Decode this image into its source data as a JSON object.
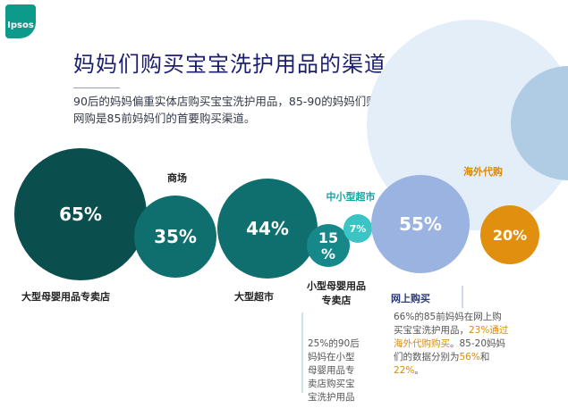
{
  "logo": {
    "text": "Ipsos"
  },
  "header": {
    "title": "妈妈们购买宝宝洗护用品的渠道",
    "subtitle_lines": [
      "90后的妈妈偏重实体店购买宝宝洗护用品，85-90的妈妈们则是线上线下并重，",
      "网购是85前妈妈们的首要购买渠道。"
    ]
  },
  "colors": {
    "dark_teal": "#0b4e4e",
    "mid_teal": "#0f6e6e",
    "teal": "#17888a",
    "light_teal": "#3cc4c4",
    "light_blue": "#9ab3e0",
    "orange": "#e0900e",
    "deco_blue": "#e4eef8",
    "deco_blue_dark": "#b0cce4",
    "label_orange": "#d98b08",
    "label_teal": "#17a2a2",
    "note_text": "#555555"
  },
  "chart_data": {
    "type": "bubble",
    "title": "妈妈们购买宝宝洗护用品的渠道",
    "bubbles": [
      {
        "category": "大型母婴用品专卖店",
        "value": 65,
        "label": "65%",
        "color_key": "dark_teal"
      },
      {
        "category": "商场",
        "value": 35,
        "label": "35%",
        "color_key": "mid_teal"
      },
      {
        "category": "大型超市",
        "value": 44,
        "label": "44%",
        "color_key": "mid_teal"
      },
      {
        "category": "小型母婴用品专卖店",
        "value": 15,
        "label": "15%",
        "color_key": "teal"
      },
      {
        "category": "中小型超市",
        "value": 7,
        "label": "7%",
        "color_key": "light_teal"
      },
      {
        "category": "网上购买",
        "value": 55,
        "label": "55%",
        "color_key": "light_blue"
      },
      {
        "category": "海外代购",
        "value": 20,
        "label": "20%",
        "color_key": "orange"
      }
    ],
    "annotations": {
      "small_store_note": [
        "25%的90后",
        "妈妈在小型",
        "母婴用品专",
        "卖店购买宝",
        "宝洗护用品"
      ],
      "online_note": {
        "lines": [
          [
            {
              "text": "66%的85前妈妈在网上购",
              "highlight": false
            }
          ],
          [
            {
              "text": "买宝宝洗护用品，",
              "highlight": false
            },
            {
              "text": "23%通过",
              "highlight": true
            }
          ],
          [
            {
              "text": "海外代购购买",
              "highlight": true
            },
            {
              "text": "。85-20妈妈",
              "highlight": false
            }
          ],
          [
            {
              "text": "们的数据分别为",
              "highlight": false
            },
            {
              "text": "56%",
              "highlight": true
            },
            {
              "text": "和",
              "highlight": false
            }
          ],
          [
            {
              "text": "22%",
              "highlight": true
            },
            {
              "text": "。",
              "highlight": false
            }
          ]
        ]
      }
    }
  }
}
